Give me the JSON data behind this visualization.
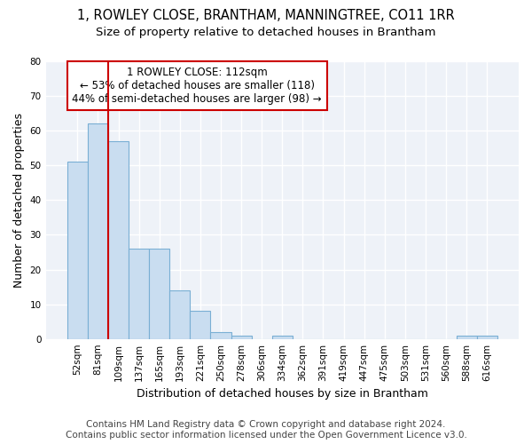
{
  "title1": "1, ROWLEY CLOSE, BRANTHAM, MANNINGTREE, CO11 1RR",
  "title2": "Size of property relative to detached houses in Brantham",
  "xlabel": "Distribution of detached houses by size in Brantham",
  "ylabel": "Number of detached properties",
  "bin_labels": [
    "52sqm",
    "81sqm",
    "109sqm",
    "137sqm",
    "165sqm",
    "193sqm",
    "221sqm",
    "250sqm",
    "278sqm",
    "306sqm",
    "334sqm",
    "362sqm",
    "391sqm",
    "419sqm",
    "447sqm",
    "475sqm",
    "503sqm",
    "531sqm",
    "560sqm",
    "588sqm",
    "616sqm"
  ],
  "bar_values": [
    51,
    62,
    57,
    26,
    26,
    14,
    8,
    2,
    1,
    0,
    1,
    0,
    0,
    0,
    0,
    0,
    0,
    0,
    0,
    1,
    1
  ],
  "bar_color": "#c9ddf0",
  "bar_edge_color": "#7aafd4",
  "red_line_bin": 2,
  "annotation_line1": "1 ROWLEY CLOSE: 112sqm",
  "annotation_line2": "← 53% of detached houses are smaller (118)",
  "annotation_line3": "44% of semi-detached houses are larger (98) →",
  "annotation_box_color": "#cc0000",
  "ylim": [
    0,
    80
  ],
  "yticks": [
    0,
    10,
    20,
    30,
    40,
    50,
    60,
    70,
    80
  ],
  "footer1": "Contains HM Land Registry data © Crown copyright and database right 2024.",
  "footer2": "Contains public sector information licensed under the Open Government Licence v3.0.",
  "bg_color": "#eef2f8",
  "grid_color": "#ffffff",
  "title_fontsize": 10.5,
  "subtitle_fontsize": 9.5,
  "axis_label_fontsize": 9,
  "tick_fontsize": 7.5,
  "annot_fontsize": 8.5,
  "footer_fontsize": 7.5
}
